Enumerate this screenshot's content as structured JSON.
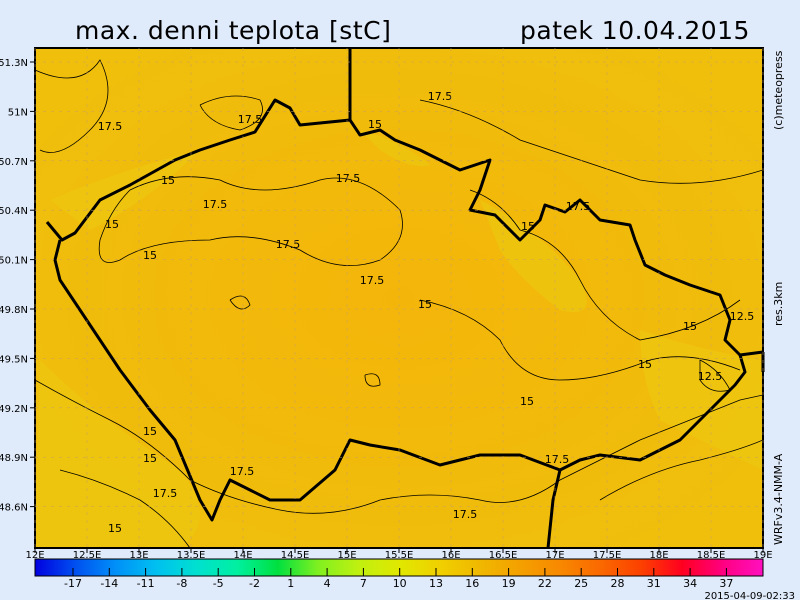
{
  "header": {
    "title": "max. denni teplota [stC]",
    "date": "patek 10.04.2015"
  },
  "side_labels": {
    "copyright": "(c)meteopress",
    "resolution": "res.3km",
    "model": "WRFv3.4-NMM-A"
  },
  "map": {
    "lon_ticks": [
      "12E",
      "12.5E",
      "13E",
      "13.5E",
      "14E",
      "14.5E",
      "15E",
      "15.5E",
      "16E",
      "16.5E",
      "17E",
      "17.5E",
      "18E",
      "18.5E",
      "19E"
    ],
    "lat_ticks": [
      "51.3N",
      "51N",
      "50.7N",
      "50.4N",
      "50.1N",
      "49.8N",
      "49.5N",
      "49.2N",
      "48.9N",
      "48.6N"
    ],
    "contour_labels": [
      "17.5",
      "17.5",
      "17.5",
      "15",
      "15",
      "17.5",
      "17.5",
      "15",
      "17.5",
      "15",
      "15",
      "17.5",
      "17.5",
      "15",
      "15",
      "12.5",
      "15",
      "12.5",
      "15",
      "15",
      "15",
      "17.5",
      "17.5",
      "15",
      "17.5",
      "17.5"
    ],
    "colors": {
      "field": "#f4b30a",
      "field_light": "#eec60e",
      "border": "#000000"
    }
  },
  "colorbar": {
    "labels": [
      "-17",
      "-14",
      "-11",
      "-8",
      "-5",
      "-2",
      "1",
      "4",
      "7",
      "10",
      "13",
      "16",
      "19",
      "22",
      "25",
      "28",
      "31",
      "34",
      "37"
    ],
    "colors": [
      "#0000e0",
      "#0050f0",
      "#0090f8",
      "#00c0f0",
      "#00e0d0",
      "#00f0a0",
      "#00e040",
      "#80f020",
      "#c0f010",
      "#e0e800",
      "#f0d000",
      "#f0b800",
      "#f4a000",
      "#f88800",
      "#fa6800",
      "#fc4000",
      "#ff0020",
      "#ff0080",
      "#ff10c0"
    ],
    "run_time": "2015-04-09-02:33"
  }
}
